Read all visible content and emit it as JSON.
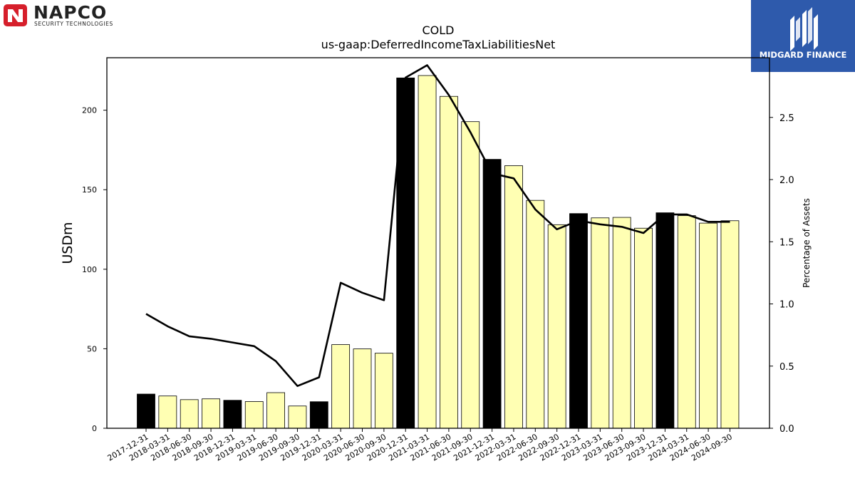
{
  "logos": {
    "top_left": {
      "name": "NAPCO",
      "tagline": "SECURITY TECHNOLOGIES",
      "color": "#d61f2b"
    },
    "top_right": {
      "name": "MIDGARD FINANCE",
      "background": "#2e5aac"
    }
  },
  "colors": {
    "bar_fiscal_year_end": "#000000",
    "bar_quarter": "#ffffb3",
    "bar_edge": "#000000",
    "line": "#000000"
  },
  "chart_data": {
    "type": "bar",
    "title": "COLD",
    "subtitle": "us-gaap:DeferredIncomeTaxLiabilitiesNet",
    "ylabel": "USDm",
    "y2label": "Percentage of Assets",
    "ylim": [
      0,
      233
    ],
    "y2lim": [
      0,
      2.98
    ],
    "yticks": [
      0,
      50,
      100,
      150,
      200
    ],
    "y2ticks": [
      0.0,
      0.5,
      1.0,
      1.5,
      2.0,
      2.5
    ],
    "y2tick_labels": [
      "0.0",
      "0.5",
      "1.0",
      "1.5",
      "2.0",
      "2.5"
    ],
    "categories": [
      "2017-12-31",
      "2018-03-31",
      "2018-06-30",
      "2018-09-30",
      "2018-12-31",
      "2019-03-31",
      "2019-06-30",
      "2019-09-30",
      "2019-12-31",
      "2020-03-31",
      "2020-06-30",
      "2020-09-30",
      "2020-12-31",
      "2021-03-31",
      "2021-06-30",
      "2021-09-30",
      "2021-12-31",
      "2022-03-31",
      "2022-06-30",
      "2022-09-30",
      "2022-12-31",
      "2023-03-31",
      "2023-06-30",
      "2023-09-30",
      "2023-12-31",
      "2024-03-31",
      "2024-06-30",
      "2024-09-30"
    ],
    "series": [
      {
        "name": "",
        "kind": "bar",
        "axis": "left",
        "values": [
          21.5,
          20.3,
          18.0,
          18.5,
          17.6,
          16.8,
          22.4,
          14.0,
          16.7,
          52.6,
          49.9,
          47.2,
          220.3,
          221.8,
          208.7,
          192.8,
          169.1,
          165.1,
          143.3,
          128.0,
          135.0,
          132.3,
          132.6,
          125.8,
          135.5,
          133.7,
          129.0,
          130.5
        ],
        "highlight": [
          true,
          false,
          false,
          false,
          true,
          false,
          false,
          false,
          true,
          false,
          false,
          false,
          true,
          false,
          false,
          false,
          true,
          false,
          false,
          false,
          true,
          false,
          false,
          false,
          true,
          false,
          false,
          false
        ]
      },
      {
        "name": "",
        "kind": "line",
        "axis": "right",
        "values": [
          0.92,
          0.82,
          0.74,
          0.72,
          0.69,
          0.66,
          0.54,
          0.34,
          0.41,
          1.17,
          1.09,
          1.03,
          2.82,
          2.92,
          2.68,
          2.38,
          2.05,
          2.01,
          1.76,
          1.6,
          1.67,
          1.64,
          1.62,
          1.57,
          1.72,
          1.72,
          1.66,
          1.66
        ]
      }
    ],
    "grid": false,
    "legend": "none"
  }
}
